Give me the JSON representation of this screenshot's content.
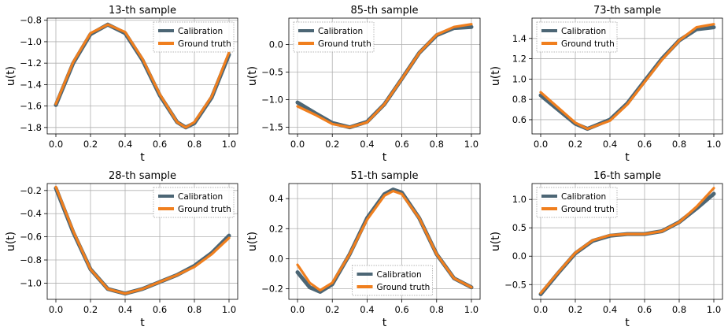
{
  "colors": {
    "calibration": "#4c6675",
    "ground_truth": "#f07f1e"
  },
  "chart_data": [
    {
      "type": "line",
      "title": "13-th sample",
      "xlabel": "t",
      "ylabel": "u(t)",
      "xlim": [
        -0.05,
        1.05
      ],
      "ylim": [
        -1.86,
        -0.78
      ],
      "xticks": [
        0.0,
        0.2,
        0.4,
        0.6,
        0.8,
        1.0
      ],
      "xtick_labels": [
        "0.0",
        "0.2",
        "0.4",
        "0.6",
        "0.8",
        "1.0"
      ],
      "yticks": [
        -1.8,
        -1.6,
        -1.4,
        -1.2,
        -1.0,
        -0.8
      ],
      "ytick_labels": [
        "−1.8",
        "−1.6",
        "−1.4",
        "−1.2",
        "−1.0",
        "−0.8"
      ],
      "grid": true,
      "legend": "upper-right",
      "x": [
        0.0,
        0.1,
        0.2,
        0.3,
        0.4,
        0.5,
        0.6,
        0.7,
        0.75,
        0.8,
        0.9,
        1.0
      ],
      "series": [
        {
          "name": "Calibration",
          "values": [
            -1.59,
            -1.2,
            -0.93,
            -0.84,
            -0.92,
            -1.17,
            -1.5,
            -1.75,
            -1.8,
            -1.76,
            -1.52,
            -1.12
          ]
        },
        {
          "name": "Ground truth",
          "values": [
            -1.58,
            -1.19,
            -0.92,
            -0.84,
            -0.91,
            -1.16,
            -1.49,
            -1.75,
            -1.8,
            -1.75,
            -1.51,
            -1.1
          ]
        }
      ]
    },
    {
      "type": "line",
      "title": "85-th sample",
      "xlabel": "t",
      "ylabel": "u(t)",
      "xlim": [
        -0.05,
        1.05
      ],
      "ylim": [
        -1.62,
        0.48
      ],
      "xticks": [
        0.0,
        0.2,
        0.4,
        0.6,
        0.8,
        1.0
      ],
      "xtick_labels": [
        "0.0",
        "0.2",
        "0.4",
        "0.6",
        "0.8",
        "1.0"
      ],
      "yticks": [
        -1.5,
        -1.0,
        -0.5,
        0.0
      ],
      "ytick_labels": [
        "−1.5",
        "−1.0",
        "−0.5",
        "0.0"
      ],
      "grid": true,
      "legend": "upper-left",
      "x": [
        0.0,
        0.1,
        0.2,
        0.3,
        0.4,
        0.5,
        0.6,
        0.7,
        0.8,
        0.9,
        1.0
      ],
      "series": [
        {
          "name": "Calibration",
          "values": [
            -1.05,
            -1.24,
            -1.42,
            -1.5,
            -1.4,
            -1.08,
            -0.62,
            -0.15,
            0.17,
            0.3,
            0.32
          ]
        },
        {
          "name": "Ground truth",
          "values": [
            -1.12,
            -1.27,
            -1.44,
            -1.5,
            -1.41,
            -1.08,
            -0.62,
            -0.15,
            0.18,
            0.32,
            0.37
          ]
        }
      ]
    },
    {
      "type": "line",
      "title": "73-th sample",
      "xlabel": "t",
      "ylabel": "u(t)",
      "xlim": [
        -0.05,
        1.05
      ],
      "ylim": [
        0.46,
        1.6
      ],
      "xticks": [
        0.0,
        0.2,
        0.4,
        0.6,
        0.8,
        1.0
      ],
      "xtick_labels": [
        "0.0",
        "0.2",
        "0.4",
        "0.6",
        "0.8",
        "1.0"
      ],
      "yticks": [
        0.6,
        0.8,
        1.0,
        1.2,
        1.4
      ],
      "ytick_labels": [
        "0.6",
        "0.8",
        "1.0",
        "1.2",
        "1.4"
      ],
      "grid": true,
      "legend": "upper-left",
      "x": [
        0.0,
        0.1,
        0.2,
        0.27,
        0.4,
        0.5,
        0.6,
        0.7,
        0.8,
        0.9,
        1.0
      ],
      "series": [
        {
          "name": "Calibration",
          "values": [
            0.84,
            0.7,
            0.56,
            0.51,
            0.6,
            0.76,
            0.98,
            1.2,
            1.38,
            1.49,
            1.51
          ]
        },
        {
          "name": "Ground truth",
          "values": [
            0.87,
            0.72,
            0.57,
            0.51,
            0.59,
            0.75,
            0.97,
            1.19,
            1.38,
            1.51,
            1.54
          ]
        }
      ]
    },
    {
      "type": "line",
      "title": "28-th sample",
      "xlabel": "t",
      "ylabel": "u(t)",
      "xlim": [
        -0.05,
        1.05
      ],
      "ylim": [
        -1.14,
        -0.14
      ],
      "xticks": [
        0.0,
        0.2,
        0.4,
        0.6,
        0.8,
        1.0
      ],
      "xtick_labels": [
        "0.0",
        "0.2",
        "0.4",
        "0.6",
        "0.8",
        "1.0"
      ],
      "yticks": [
        -1.0,
        -0.8,
        -0.6,
        -0.4,
        -0.2
      ],
      "ytick_labels": [
        "−1.0",
        "−0.8",
        "−0.6",
        "−0.4",
        "−0.2"
      ],
      "grid": true,
      "legend": "upper-right",
      "x": [
        0.0,
        0.1,
        0.2,
        0.3,
        0.4,
        0.5,
        0.6,
        0.7,
        0.8,
        0.9,
        1.0
      ],
      "series": [
        {
          "name": "Calibration",
          "values": [
            -0.18,
            -0.56,
            -0.88,
            -1.05,
            -1.09,
            -1.05,
            -0.99,
            -0.93,
            -0.85,
            -0.74,
            -0.59
          ]
        },
        {
          "name": "Ground truth",
          "values": [
            -0.17,
            -0.55,
            -0.88,
            -1.05,
            -1.09,
            -1.05,
            -0.99,
            -0.93,
            -0.86,
            -0.75,
            -0.61
          ]
        }
      ]
    },
    {
      "type": "line",
      "title": "51-th sample",
      "xlabel": "t",
      "ylabel": "u(t)",
      "xlim": [
        -0.05,
        1.05
      ],
      "ylim": [
        -0.27,
        0.5
      ],
      "xticks": [
        0.0,
        0.2,
        0.4,
        0.6,
        0.8,
        1.0
      ],
      "xtick_labels": [
        "0.0",
        "0.2",
        "0.4",
        "0.6",
        "0.8",
        "1.0"
      ],
      "yticks": [
        -0.2,
        0.0,
        0.2,
        0.4
      ],
      "ytick_labels": [
        "−0.2",
        "0.0",
        "0.2",
        "0.4"
      ],
      "grid": true,
      "legend": "lower-center",
      "x": [
        0.0,
        0.07,
        0.13,
        0.2,
        0.3,
        0.4,
        0.5,
        0.55,
        0.6,
        0.7,
        0.8,
        0.9,
        1.0
      ],
      "series": [
        {
          "name": "Calibration",
          "values": [
            -0.09,
            -0.19,
            -0.22,
            -0.17,
            0.03,
            0.27,
            0.43,
            0.46,
            0.44,
            0.27,
            0.03,
            -0.13,
            -0.19
          ]
        },
        {
          "name": "Ground truth",
          "values": [
            -0.04,
            -0.16,
            -0.21,
            -0.16,
            0.03,
            0.26,
            0.42,
            0.45,
            0.43,
            0.27,
            0.03,
            -0.13,
            -0.19
          ]
        }
      ]
    },
    {
      "type": "line",
      "title": "16-th sample",
      "xlabel": "t",
      "ylabel": "u(t)",
      "xlim": [
        -0.05,
        1.05
      ],
      "ylim": [
        -0.76,
        1.28
      ],
      "xticks": [
        0.0,
        0.2,
        0.4,
        0.6,
        0.8,
        1.0
      ],
      "xtick_labels": [
        "0.0",
        "0.2",
        "0.4",
        "0.6",
        "0.8",
        "1.0"
      ],
      "yticks": [
        -0.5,
        0.0,
        0.5,
        1.0
      ],
      "ytick_labels": [
        "−0.5",
        "0.0",
        "0.5",
        "1.0"
      ],
      "grid": true,
      "legend": "upper-left",
      "x": [
        0.0,
        0.1,
        0.2,
        0.3,
        0.4,
        0.5,
        0.6,
        0.7,
        0.8,
        0.9,
        1.0
      ],
      "series": [
        {
          "name": "Calibration",
          "values": [
            -0.67,
            -0.3,
            0.05,
            0.27,
            0.36,
            0.39,
            0.39,
            0.44,
            0.6,
            0.84,
            1.1
          ]
        },
        {
          "name": "Ground truth",
          "values": [
            -0.65,
            -0.29,
            0.06,
            0.28,
            0.37,
            0.39,
            0.39,
            0.44,
            0.6,
            0.87,
            1.2
          ]
        }
      ]
    }
  ]
}
